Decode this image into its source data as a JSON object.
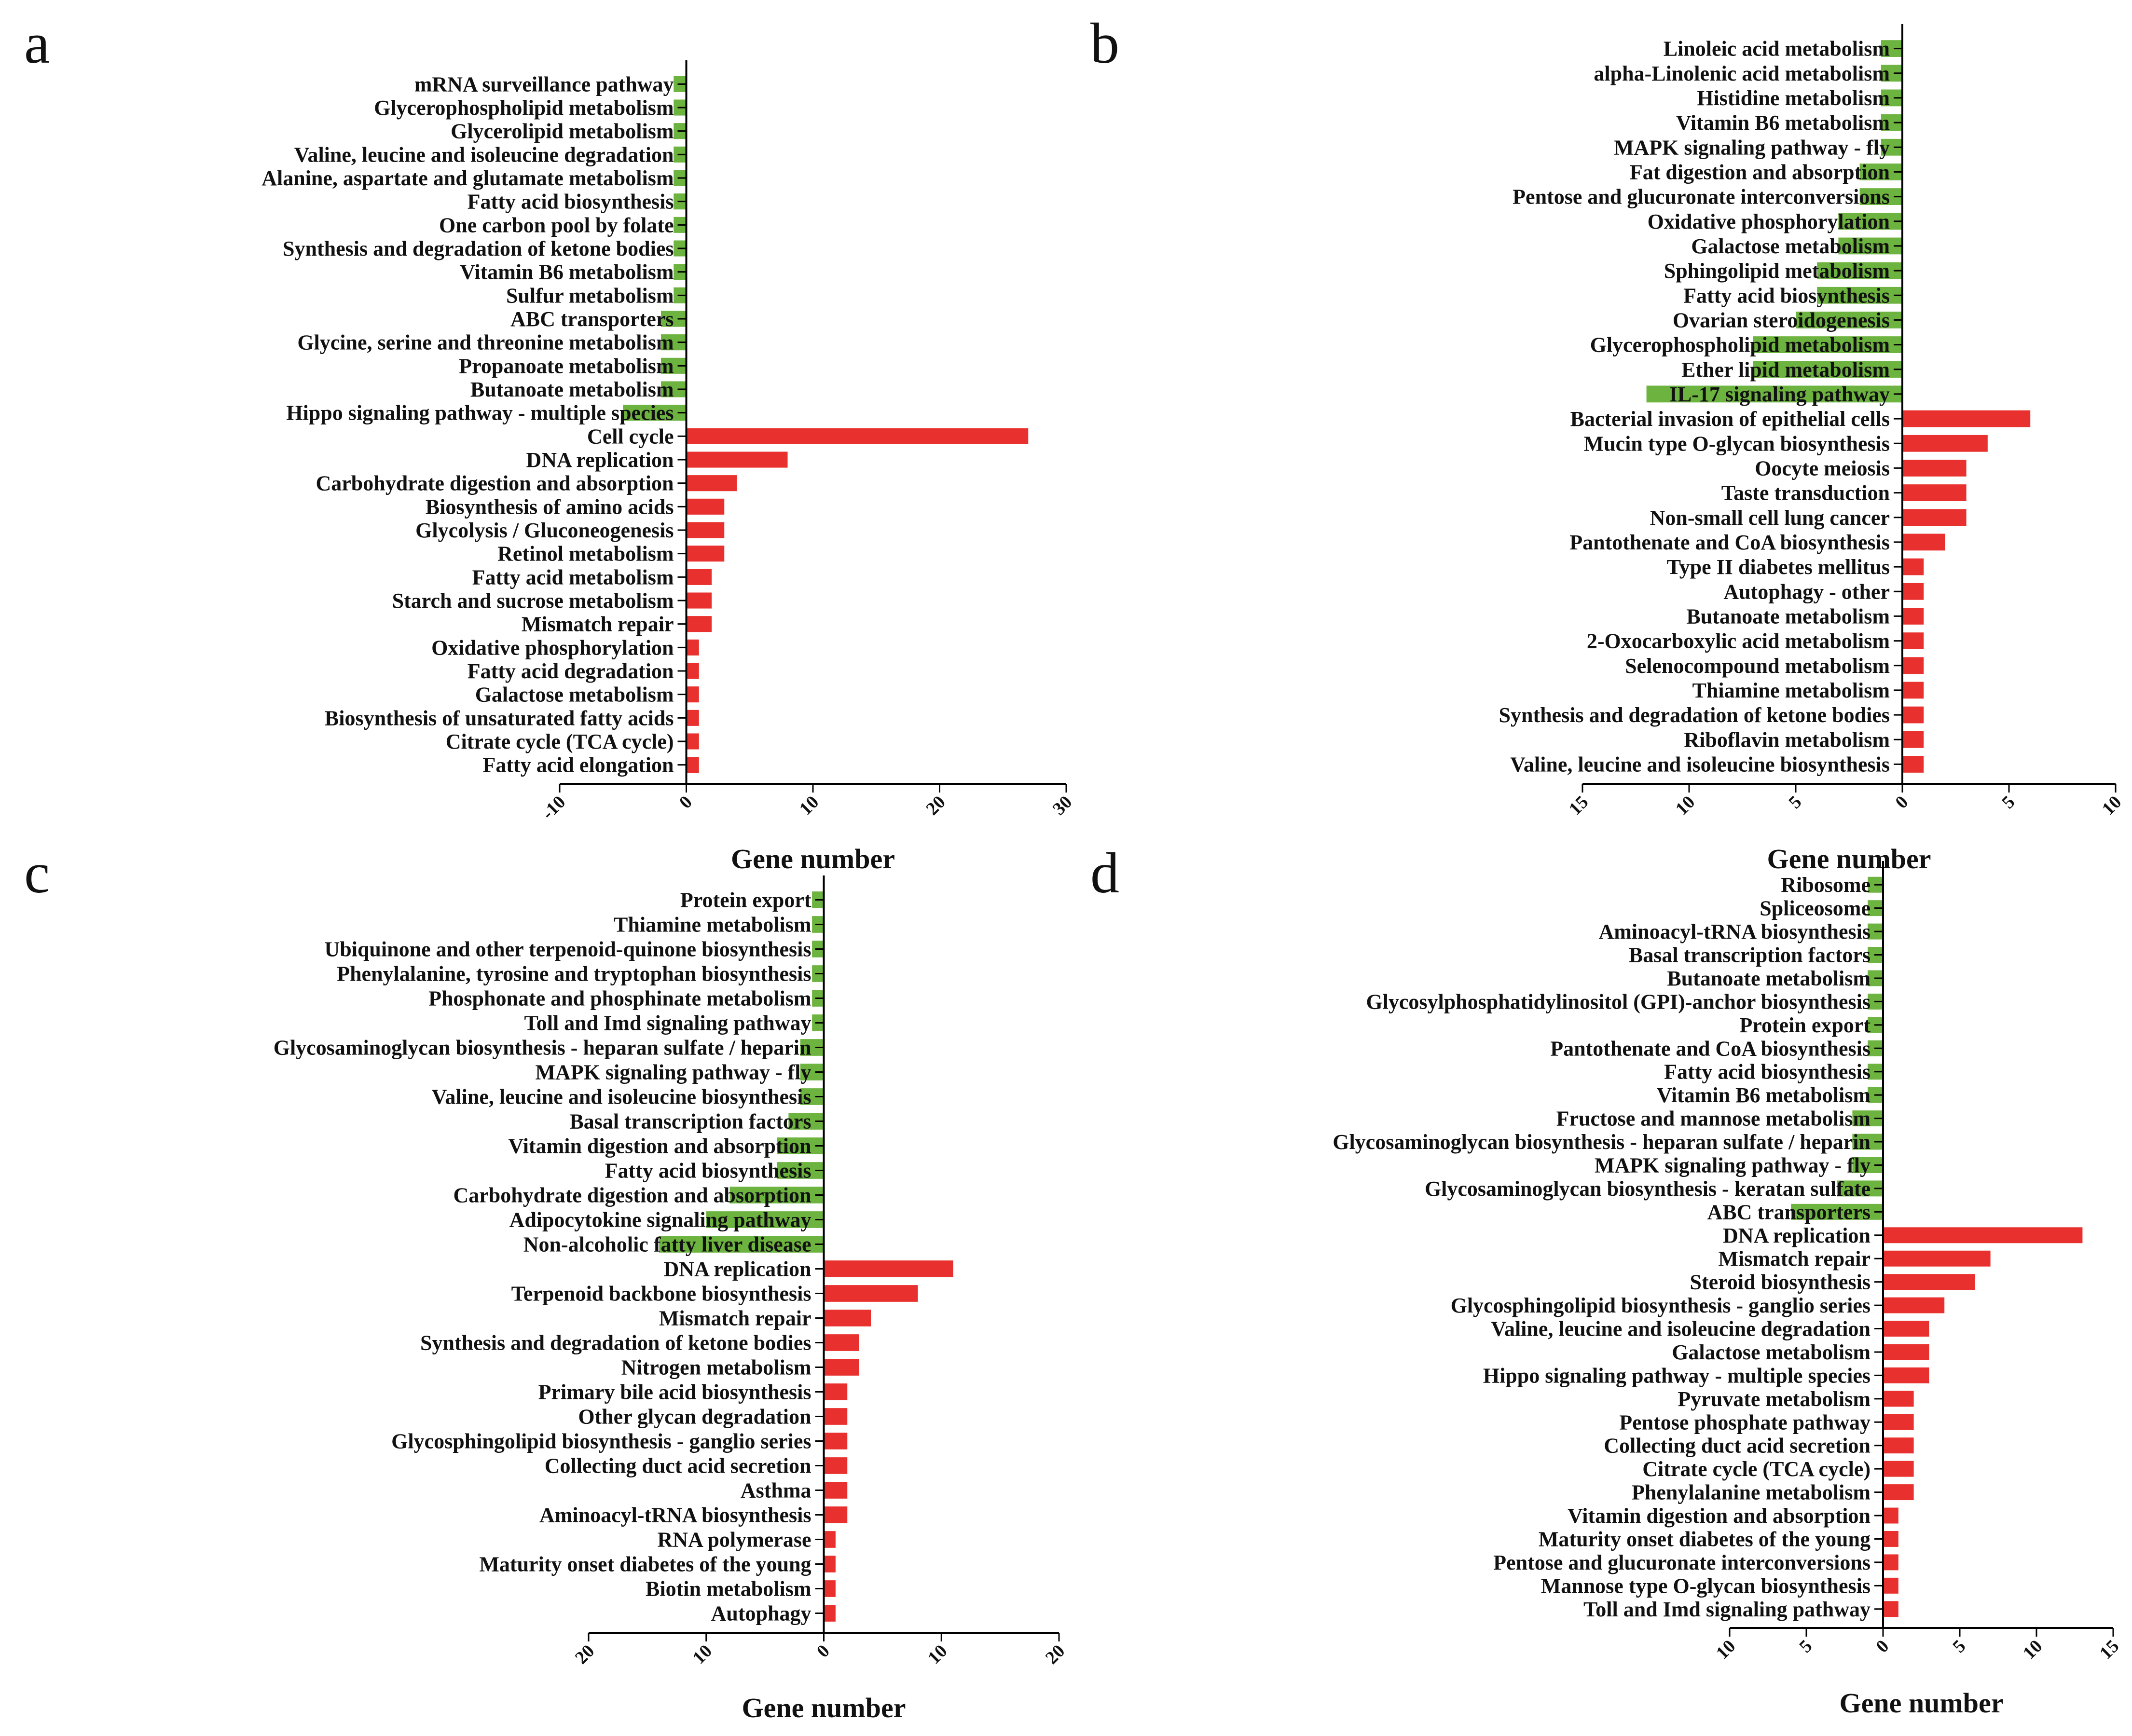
{
  "colors": {
    "negative": "#6db33f",
    "positive": "#e8312e",
    "axis": "#000000"
  },
  "chart_data": [
    {
      "type": "bar",
      "orientation": "horizontal",
      "panel_label": "a",
      "xlabel": "Gene number",
      "xlim": [
        -10,
        30
      ],
      "ticks": [
        -10,
        0,
        10,
        20,
        30
      ],
      "tick_labels": [
        "-10",
        "0",
        "10",
        "20",
        "30"
      ],
      "categories": [
        "mRNA surveillance pathway",
        "Glycerophospholipid metabolism",
        "Glycerolipid metabolism",
        "Valine, leucine and isoleucine degradation",
        "Alanine, aspartate and glutamate metabolism",
        "Fatty acid biosynthesis",
        "One carbon pool by folate",
        "Synthesis and degradation of ketone bodies",
        "Vitamin B6 metabolism",
        "Sulfur metabolism",
        "ABC transporters",
        "Glycine, serine and threonine metabolism",
        "Propanoate metabolism",
        "Butanoate metabolism",
        "Hippo signaling pathway - multiple species",
        "Cell cycle",
        "DNA replication",
        "Carbohydrate digestion and absorption",
        "Biosynthesis of amino acids",
        "Glycolysis / Gluconeogenesis",
        "Retinol metabolism",
        "Fatty acid metabolism",
        "Starch and sucrose metabolism",
        "Mismatch repair",
        "Oxidative phosphorylation",
        "Fatty acid degradation",
        "Galactose metabolism",
        "Biosynthesis of unsaturated fatty acids",
        "Citrate cycle (TCA cycle)",
        "Fatty acid elongation"
      ],
      "values": [
        -1,
        -1,
        -1,
        -1,
        -1,
        -1,
        -1,
        -1,
        -1,
        -1,
        -2,
        -2,
        -2,
        -2,
        -5,
        27,
        8,
        4,
        3,
        3,
        3,
        2,
        2,
        2,
        1,
        1,
        1,
        1,
        1,
        1
      ]
    },
    {
      "type": "bar",
      "orientation": "horizontal",
      "panel_label": "b",
      "xlabel": "Gene number",
      "xlim": [
        -15,
        10
      ],
      "ticks": [
        -15,
        -10,
        -5,
        0,
        5,
        10
      ],
      "tick_labels": [
        "15",
        "10",
        "5",
        "0",
        "5",
        "10"
      ],
      "categories": [
        "Linoleic acid metabolism",
        "alpha-Linolenic acid metabolism",
        "Histidine metabolism",
        "Vitamin B6 metabolism",
        "MAPK signaling pathway - fly",
        "Fat digestion and absorption",
        "Pentose and glucuronate interconversions",
        "Oxidative phosphorylation",
        "Galactose metabolism",
        "Sphingolipid metabolism",
        "Fatty acid biosynthesis",
        "Ovarian steroidogenesis",
        "Glycerophospholipid metabolism",
        "Ether lipid metabolism",
        "IL-17 signaling pathway",
        "Bacterial invasion of epithelial cells",
        "Mucin type O-glycan biosynthesis",
        "Oocyte meiosis",
        "Taste transduction",
        "Non-small cell lung cancer",
        "Pantothenate and CoA biosynthesis",
        "Type II diabetes mellitus",
        "Autophagy - other",
        "Butanoate metabolism",
        "2-Oxocarboxylic acid metabolism",
        "Selenocompound metabolism",
        "Thiamine metabolism",
        "Synthesis and degradation of ketone bodies",
        "Riboflavin metabolism",
        "Valine, leucine and isoleucine biosynthesis"
      ],
      "values": [
        -1,
        -1,
        -1,
        -1,
        -1,
        -2,
        -2,
        -3,
        -3,
        -4,
        -4,
        -5,
        -7,
        -7,
        -12,
        6,
        4,
        3,
        3,
        3,
        2,
        1,
        1,
        1,
        1,
        1,
        1,
        1,
        1,
        1
      ]
    },
    {
      "type": "bar",
      "orientation": "horizontal",
      "panel_label": "c",
      "xlabel": "Gene number",
      "xlim": [
        -20,
        20
      ],
      "ticks": [
        -20,
        -10,
        0,
        10,
        20
      ],
      "tick_labels": [
        "20",
        "10",
        "0",
        "10",
        "20"
      ],
      "categories": [
        "Protein export",
        "Thiamine metabolism",
        "Ubiquinone and other terpenoid-quinone biosynthesis",
        "Phenylalanine, tyrosine and tryptophan biosynthesis",
        "Phosphonate and phosphinate metabolism",
        "Toll and Imd signaling pathway",
        "Glycosaminoglycan biosynthesis - heparan sulfate / heparin",
        "MAPK signaling pathway - fly",
        "Valine, leucine and isoleucine biosynthesis",
        "Basal transcription factors",
        "Vitamin digestion and absorption",
        "Fatty acid biosynthesis",
        "Carbohydrate digestion and absorption",
        "Adipocytokine signaling pathway",
        "Non-alcoholic fatty liver disease",
        "DNA replication",
        "Terpenoid backbone biosynthesis",
        "Mismatch repair",
        "Synthesis and degradation of ketone bodies",
        "Nitrogen metabolism",
        "Primary bile acid biosynthesis",
        "Other glycan degradation",
        "Glycosphingolipid biosynthesis - ganglio series",
        "Collecting duct acid secretion",
        "Asthma",
        "Aminoacyl-tRNA biosynthesis",
        "RNA polymerase",
        "Maturity onset diabetes of the young",
        "Biotin metabolism",
        "Autophagy"
      ],
      "values": [
        -1,
        -1,
        -1,
        -1,
        -1,
        -1,
        -2,
        -2,
        -2,
        -3,
        -4,
        -4,
        -8,
        -10,
        -14,
        11,
        8,
        4,
        3,
        3,
        2,
        2,
        2,
        2,
        2,
        2,
        1,
        1,
        1,
        1
      ]
    },
    {
      "type": "bar",
      "orientation": "horizontal",
      "panel_label": "d",
      "xlabel": "Gene number",
      "xlim": [
        -10,
        15
      ],
      "ticks": [
        -10,
        -5,
        0,
        5,
        10,
        15
      ],
      "tick_labels": [
        "10",
        "5",
        "0",
        "5",
        "10",
        "15"
      ],
      "categories": [
        "Ribosome",
        "Spliceosome",
        "Aminoacyl-tRNA biosynthesis",
        "Basal transcription factors",
        "Butanoate metabolism",
        "Glycosylphosphatidylinositol (GPI)-anchor biosynthesis",
        "Protein export",
        "Pantothenate and CoA biosynthesis",
        "Fatty acid biosynthesis",
        "Vitamin B6 metabolism",
        "Fructose and mannose metabolism",
        "Glycosaminoglycan biosynthesis - heparan sulfate / heparin",
        "MAPK signaling pathway - fly",
        "Glycosaminoglycan biosynthesis - keratan sulfate",
        "ABC transporters",
        "DNA replication",
        "Mismatch repair",
        "Steroid biosynthesis",
        "Glycosphingolipid biosynthesis - ganglio series",
        "Valine, leucine and isoleucine degradation",
        "Galactose metabolism",
        "Hippo signaling pathway - multiple species",
        "Pyruvate metabolism",
        "Pentose phosphate pathway",
        "Collecting duct acid secretion",
        "Citrate cycle (TCA cycle)",
        "Phenylalanine metabolism",
        "Vitamin digestion and absorption",
        "Maturity onset diabetes of the young",
        "Pentose and glucuronate interconversions",
        "Mannose type O-glycan biosynthesis",
        "Toll and Imd signaling pathway"
      ],
      "values": [
        -1,
        -1,
        -1,
        -1,
        -1,
        -1,
        -1,
        -1,
        -1,
        -1,
        -2,
        -2,
        -2,
        -3,
        -6,
        13,
        7,
        6,
        4,
        3,
        3,
        3,
        2,
        2,
        2,
        2,
        2,
        1,
        1,
        1,
        1,
        1
      ]
    }
  ]
}
